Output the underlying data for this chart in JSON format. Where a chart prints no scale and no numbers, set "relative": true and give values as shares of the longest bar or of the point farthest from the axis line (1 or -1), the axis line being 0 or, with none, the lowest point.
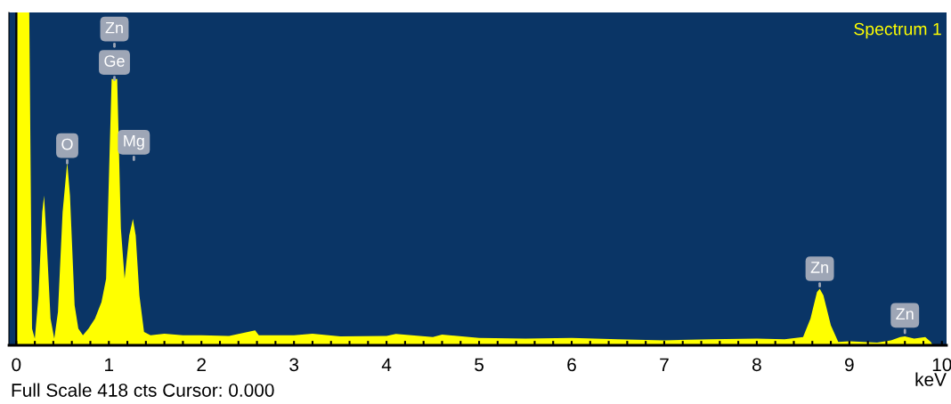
{
  "chart_data": {
    "type": "area",
    "relative": true,
    "xlabel": "keV",
    "color": "#ffff00",
    "x": [
      0.0,
      0.01,
      0.14,
      0.17,
      0.2,
      0.24,
      0.28,
      0.3,
      0.33,
      0.37,
      0.41,
      0.45,
      0.5,
      0.55,
      0.58,
      0.63,
      0.67,
      0.72,
      0.78,
      0.85,
      0.92,
      0.97,
      1.0,
      1.03,
      1.06,
      1.09,
      1.13,
      1.17,
      1.22,
      1.26,
      1.29,
      1.33,
      1.38,
      1.45,
      1.6,
      1.8,
      2.0,
      2.3,
      2.58,
      2.62,
      3.0,
      3.2,
      3.5,
      4.0,
      4.1,
      4.5,
      4.6,
      5.0,
      5.5,
      6.0,
      6.5,
      7.0,
      7.5,
      8.0,
      8.3,
      8.5,
      8.58,
      8.65,
      8.68,
      8.72,
      8.8,
      8.88,
      9.0,
      9.3,
      9.45,
      9.55,
      9.6,
      9.7,
      9.82,
      9.88,
      9.9
    ],
    "values": [
      0,
      1,
      1,
      0.05,
      0.02,
      0.15,
      0.4,
      0.45,
      0.3,
      0.08,
      0.02,
      0.1,
      0.4,
      0.55,
      0.45,
      0.12,
      0.05,
      0.03,
      0.05,
      0.08,
      0.13,
      0.2,
      0.5,
      0.8,
      null,
      0.8,
      0.35,
      0.2,
      0.33,
      0.38,
      0.33,
      0.15,
      0.04,
      0.03,
      0.035,
      0.03,
      0.03,
      0.028,
      0.045,
      0.03,
      0.03,
      0.035,
      0.027,
      0.028,
      0.034,
      0.025,
      0.032,
      0.022,
      0.02,
      0.022,
      0.018,
      0.015,
      0.018,
      0.02,
      0.018,
      0.025,
      0.08,
      0.16,
      0.17,
      0.15,
      0.06,
      0.01,
      0.012,
      0.008,
      0.015,
      0.025,
      0.027,
      0.02,
      0.025,
      0.01,
      0
    ],
    "xlim": [
      -0.08,
      10.05
    ],
    "xticks": [
      0,
      {
        "value": 0.2,
        "label": null
      },
      {
        "value": 0.4,
        "label": null
      },
      {
        "value": 0.6,
        "label": null
      },
      {
        "value": 0.8,
        "label": null
      },
      1,
      {
        "value": 1.2,
        "label": null
      },
      {
        "value": 1.4,
        "label": null
      },
      {
        "value": 1.6,
        "label": null
      },
      {
        "value": 1.8,
        "label": null
      },
      2,
      {
        "value": 2.2,
        "label": null
      },
      {
        "value": 2.4,
        "label": null
      },
      {
        "value": 2.6,
        "label": null
      },
      {
        "value": 2.8,
        "label": null
      },
      3,
      {
        "value": 3.2,
        "label": null
      },
      {
        "value": 3.4,
        "label": null
      },
      {
        "value": 3.6,
        "label": null
      },
      {
        "value": 3.8,
        "label": null
      },
      4,
      {
        "value": 4.2,
        "label": null
      },
      {
        "value": 4.4,
        "label": null
      },
      {
        "value": 4.6,
        "label": null
      },
      {
        "value": 4.8,
        "label": null
      },
      5,
      {
        "value": 5.2,
        "label": null
      },
      {
        "value": 5.4,
        "label": null
      },
      {
        "value": 5.6,
        "label": null
      },
      {
        "value": 5.8,
        "label": null
      },
      6,
      {
        "value": 6.2,
        "label": null
      },
      {
        "value": 6.4,
        "label": null
      },
      {
        "value": 6.6,
        "label": null
      },
      {
        "value": 6.8,
        "label": null
      },
      7,
      {
        "value": 7.2,
        "label": null
      },
      {
        "value": 7.4,
        "label": null
      },
      {
        "value": 7.6,
        "label": null
      },
      {
        "value": 7.8,
        "label": null
      },
      8,
      {
        "value": 8.2,
        "label": null
      },
      {
        "value": 8.4,
        "label": null
      },
      {
        "value": 8.6,
        "label": null
      },
      {
        "value": 8.8,
        "label": null
      },
      9,
      {
        "value": 9.2,
        "label": null
      },
      {
        "value": 9.4,
        "label": null
      },
      {
        "value": 9.6,
        "label": null
      },
      {
        "value": 9.8,
        "label": null
      },
      10
    ],
    "tick_labels": "x",
    "grid": false,
    "ref_lines": [
      {
        "axis": "x",
        "value": 0,
        "color": "#000000"
      }
    ],
    "annotations": [
      {
        "text": "Zn",
        "x": 1.06,
        "y": 0.95
      },
      {
        "text": "Ge",
        "x": 1.06,
        "y": 0.85
      },
      {
        "text": "O",
        "x": 0.55,
        "y": 0.6
      },
      {
        "text": "Mg",
        "x": 1.27,
        "y": 0.61
      },
      {
        "text": "Zn",
        "x": 8.68,
        "y": 0.23
      },
      {
        "text": "Zn",
        "x": 9.6,
        "y": 0.09
      },
      "Spectrum 1",
      "Full Scale 418 cts Cursor: 0.000"
    ]
  }
}
